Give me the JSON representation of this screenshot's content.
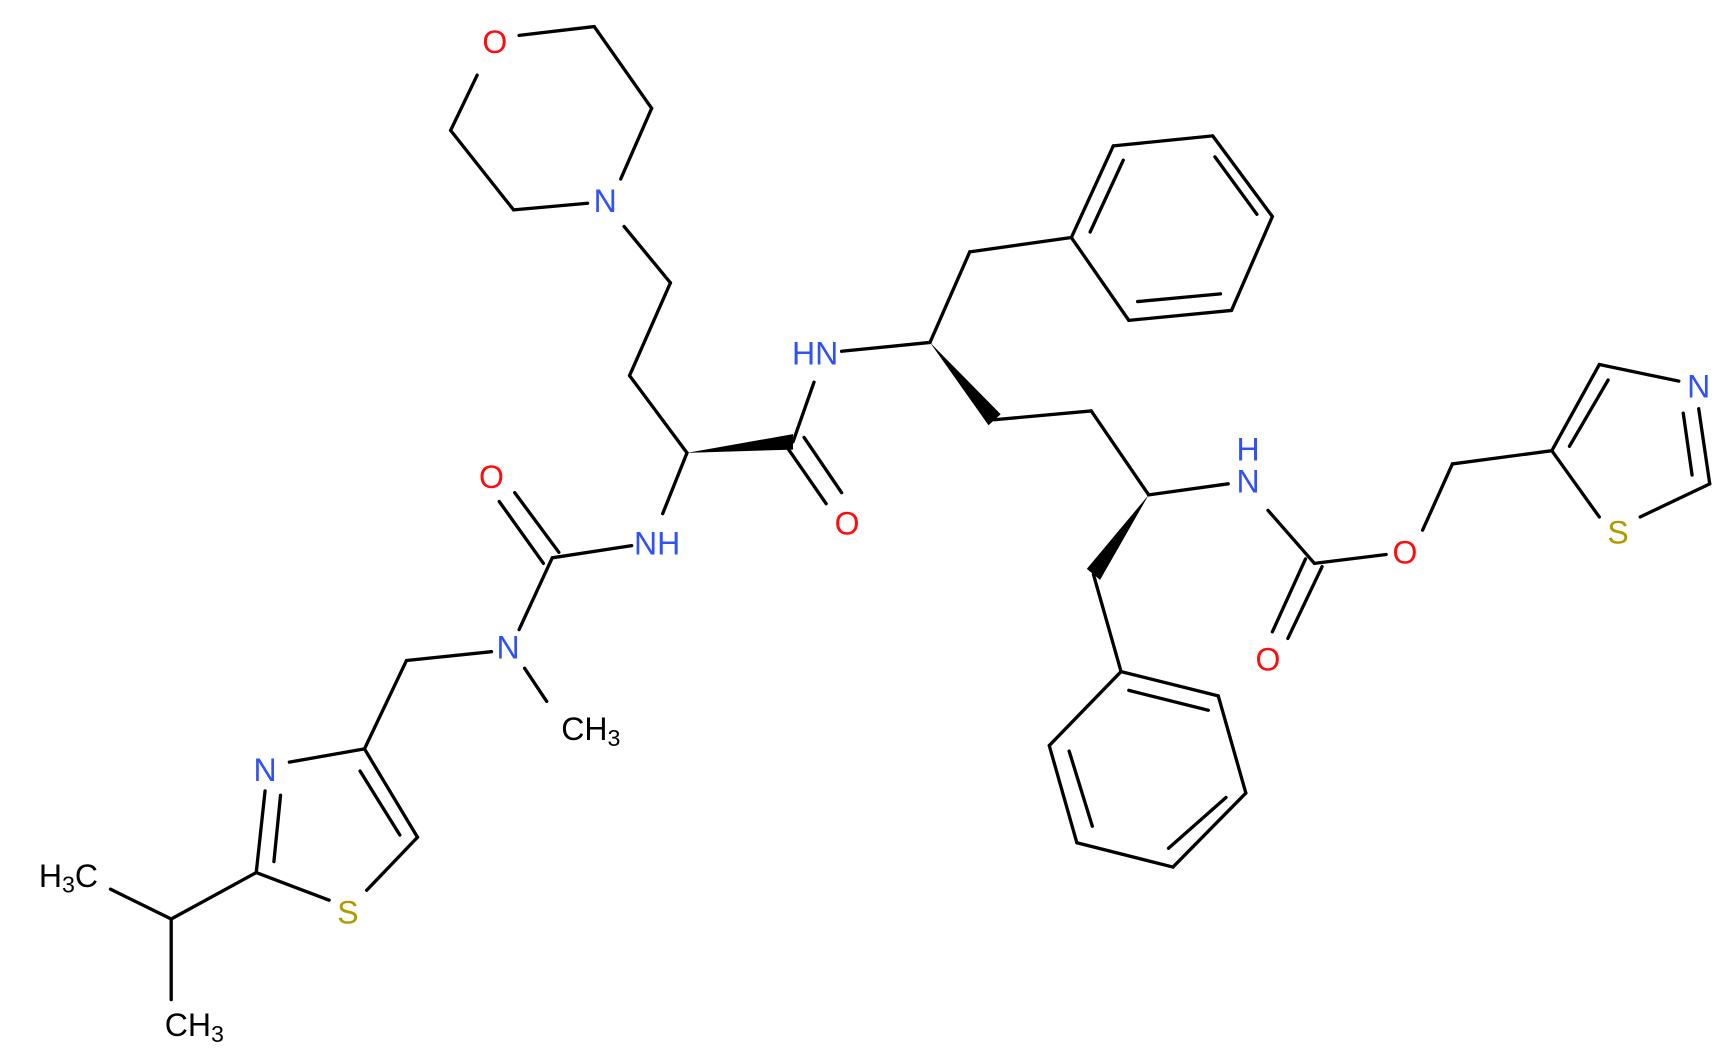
{
  "nodes": [
    {
      "label": "O"
    },
    {
      "label": "N"
    },
    {
      "label": "HN"
    },
    {
      "label": "O"
    },
    {
      "label": "NH"
    },
    {
      "label": "O"
    },
    {
      "label": "N"
    },
    {
      "label": "CH",
      "sub": "3"
    },
    {
      "label": "N"
    },
    {
      "label": "S"
    },
    {
      "label": "H",
      "sub": "3",
      "suffix": "C"
    },
    {
      "label": "CH",
      "sub": "3"
    },
    {
      "label": "N",
      "h": "H"
    },
    {
      "label": "O"
    },
    {
      "label": "O"
    },
    {
      "label": "N"
    },
    {
      "label": "S"
    }
  ]
}
